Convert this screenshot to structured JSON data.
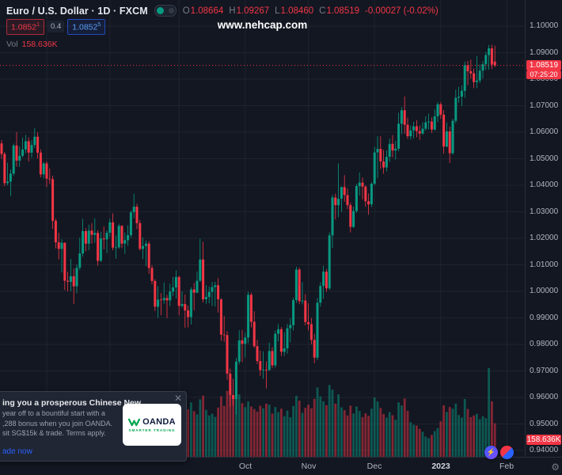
{
  "colors": {
    "background": "#131722",
    "up": "#089981",
    "down": "#f23645",
    "blue": "#2962ff",
    "grid": "#1e222d",
    "axis_text": "#b2b5be"
  },
  "header": {
    "title": "Euro / U.S. Dollar · 1D · FXCM",
    "ohlc": [
      {
        "k": "O",
        "v": "1.08664"
      },
      {
        "k": "H",
        "v": "1.09267"
      },
      {
        "k": "L",
        "v": "1.08460"
      },
      {
        "k": "C",
        "v": "1.08519"
      }
    ],
    "change": "-0.00027 (-0.02%)",
    "sell": {
      "main": "1.0852",
      "sup": "1"
    },
    "spread": "0.4",
    "buy": {
      "main": "1.0852",
      "sup": "5"
    },
    "vol_label": "Vol",
    "vol_value": "158.636K"
  },
  "watermark": "www.nehcap.com",
  "price_axis": {
    "labels": [
      "1.10000",
      "1.09000",
      "1.08000",
      "1.07000",
      "1.06000",
      "1.05000",
      "1.04000",
      "1.03000",
      "1.02000",
      "1.01000",
      "1.00000",
      "0.99000",
      "0.98000",
      "0.97000",
      "0.96000",
      "0.95000",
      "0.94000"
    ]
  },
  "time_axis": {
    "labels": [
      {
        "text": "Oct",
        "index": 81
      },
      {
        "text": "Nov",
        "index": 102
      },
      {
        "text": "Dec",
        "index": 124
      },
      {
        "text": "2023",
        "index": 146,
        "em": true
      },
      {
        "text": "Feb",
        "index": 168
      }
    ]
  },
  "badges": {
    "last_price": "1.08519",
    "countdown": "07:25:20",
    "volume": "158.636K"
  },
  "ad": {
    "title": "ing you a prosperous Chinese New",
    "lines": [
      "year off to a bountiful start with a",
      ",288 bonus when you join OANDA.",
      "sit SG$15k & trade. Terms apply."
    ],
    "cta": "ade now",
    "logo_name": "OANDA",
    "logo_sub": "SMARTER TRADING"
  },
  "chart_data": {
    "type": "candlestick",
    "title": "Euro / U.S. Dollar",
    "timeframe": "1D",
    "exchange": "FXCM",
    "legend_last_candle": {
      "o": 1.08664,
      "h": 1.09267,
      "l": 1.0846,
      "c": 1.08519,
      "change": -0.00027,
      "change_pct": -0.02,
      "volume_k": 158.636
    },
    "last_price": 1.08519,
    "y_axis": {
      "min": 0.94,
      "max": 1.1,
      "tick": 0.01
    },
    "volume_unit": "K",
    "volume_max_k": 420,
    "x_month_gridlines": [
      15,
      36,
      59,
      81,
      102,
      124,
      146,
      168
    ],
    "candles_ohlcv": [
      [
        1.0558,
        1.057,
        1.05,
        1.0518,
        185
      ],
      [
        1.0518,
        1.0525,
        1.0397,
        1.0408,
        232
      ],
      [
        1.0408,
        1.0485,
        1.04,
        1.0414,
        198
      ],
      [
        1.0414,
        1.0459,
        1.0359,
        1.0444,
        210
      ],
      [
        1.0444,
        1.0557,
        1.0435,
        1.055,
        205
      ],
      [
        1.055,
        1.0601,
        1.047,
        1.0493,
        190
      ],
      [
        1.0493,
        1.0546,
        1.0469,
        1.0511,
        165
      ],
      [
        1.0511,
        1.058,
        1.0505,
        1.0535,
        172
      ],
      [
        1.0535,
        1.059,
        1.052,
        1.0566,
        160
      ],
      [
        1.0566,
        1.058,
        1.049,
        1.0523,
        178
      ],
      [
        1.0523,
        1.057,
        1.0504,
        1.0552,
        150
      ],
      [
        1.0552,
        1.0615,
        1.054,
        1.0583,
        162
      ],
      [
        1.0583,
        1.06,
        1.0501,
        1.0523,
        170
      ],
      [
        1.0523,
        1.0535,
        1.043,
        1.0441,
        188
      ],
      [
        1.0441,
        1.0488,
        1.0425,
        1.0482,
        155
      ],
      [
        1.0482,
        1.049,
        1.0393,
        1.0425,
        196
      ],
      [
        1.0425,
        1.0463,
        1.0405,
        1.0423,
        148
      ],
      [
        1.0423,
        1.0436,
        1.0235,
        1.0266,
        265
      ],
      [
        1.0266,
        1.0274,
        1.0162,
        1.0185,
        248
      ],
      [
        1.0185,
        1.0221,
        1.012,
        1.016,
        230
      ],
      [
        1.016,
        1.0196,
        1.0071,
        1.0183,
        242
      ],
      [
        1.0183,
        1.0185,
        1.0005,
        1.004,
        288
      ],
      [
        1.004,
        1.0074,
        0.9999,
        1.0036,
        262
      ],
      [
        1.0036,
        1.0122,
        1.0,
        1.0057,
        255
      ],
      [
        1.0057,
        1.0086,
        0.9952,
        1.0019,
        295
      ],
      [
        1.0019,
        1.0101,
        0.9993,
        1.0089,
        240
      ],
      [
        1.0089,
        1.0202,
        1.008,
        1.0143,
        225
      ],
      [
        1.0143,
        1.0273,
        1.0131,
        1.0227,
        238
      ],
      [
        1.0227,
        1.0238,
        1.0151,
        1.018,
        205
      ],
      [
        1.018,
        1.0251,
        1.0155,
        1.0229,
        198
      ],
      [
        1.0229,
        1.0257,
        1.018,
        1.0213,
        176
      ],
      [
        1.0213,
        1.0275,
        1.0183,
        1.022,
        168
      ],
      [
        1.022,
        1.023,
        1.0097,
        1.0115,
        215
      ],
      [
        1.0115,
        1.0225,
        1.011,
        1.0199,
        222
      ],
      [
        1.0199,
        1.0245,
        1.0158,
        1.0196,
        189
      ],
      [
        1.0196,
        1.023,
        1.0144,
        1.0221,
        177
      ],
      [
        1.0221,
        1.0274,
        1.0205,
        1.026,
        193
      ],
      [
        1.026,
        1.0294,
        1.0155,
        1.0165,
        226
      ],
      [
        1.0165,
        1.0211,
        1.0123,
        1.0166,
        184
      ],
      [
        1.0166,
        1.0255,
        1.016,
        1.0247,
        178
      ],
      [
        1.0247,
        1.025,
        1.0163,
        1.018,
        190
      ],
      [
        1.018,
        1.0222,
        1.0141,
        1.0193,
        162
      ],
      [
        1.0193,
        1.0249,
        1.0172,
        1.0212,
        158
      ],
      [
        1.0212,
        1.0305,
        1.0202,
        1.0298,
        201
      ],
      [
        1.0298,
        1.0368,
        1.0276,
        1.0319,
        232
      ],
      [
        1.0319,
        1.033,
        1.0235,
        1.0257,
        205
      ],
      [
        1.0257,
        1.0269,
        1.0154,
        1.016,
        218
      ],
      [
        1.016,
        1.0203,
        1.0122,
        1.0171,
        174
      ],
      [
        1.0171,
        1.0192,
        1.0096,
        1.018,
        166
      ],
      [
        1.018,
        1.019,
        1.0066,
        1.0088,
        209
      ],
      [
        1.0088,
        1.0098,
        1.0026,
        1.0039,
        214
      ],
      [
        1.0039,
        1.0046,
        0.9926,
        0.9942,
        258
      ],
      [
        0.9942,
        1.0019,
        0.99,
        0.9969,
        246
      ],
      [
        0.9969,
        0.9993,
        0.991,
        0.9967,
        190
      ],
      [
        0.9967,
        1.0033,
        0.9953,
        0.9975,
        182
      ],
      [
        0.9975,
        0.9987,
        0.9899,
        0.9966,
        205
      ],
      [
        0.9966,
        1.0029,
        0.9944,
        0.9999,
        193
      ],
      [
        0.9999,
        1.0055,
        0.9982,
        1.0015,
        176
      ],
      [
        1.0015,
        1.0079,
        0.9972,
        1.0054,
        214
      ],
      [
        1.0054,
        1.0059,
        0.991,
        0.9945,
        268
      ],
      [
        0.9945,
        1.0,
        0.9939,
        0.9952,
        212
      ],
      [
        0.9952,
        0.9988,
        0.9863,
        0.9928,
        247
      ],
      [
        0.9928,
        0.9946,
        0.9864,
        0.9903,
        225
      ],
      [
        0.9903,
        1.0015,
        0.9875,
        1.0007,
        258
      ],
      [
        1.0007,
        1.0032,
        0.9928,
        0.9995,
        216
      ],
      [
        0.9995,
        1.0075,
        0.9993,
        1.004,
        201
      ],
      [
        1.004,
        1.0198,
        1.0035,
        1.012,
        272
      ],
      [
        1.012,
        1.0187,
        0.9958,
        0.997,
        290
      ],
      [
        0.997,
        1.0023,
        0.9953,
        0.9979,
        222
      ],
      [
        0.9979,
        1.0018,
        0.9955,
        0.9998,
        196
      ],
      [
        0.9998,
        1.0036,
        0.9945,
        1.0016,
        204
      ],
      [
        1.0016,
        1.0036,
        0.9943,
        1.0023,
        189
      ],
      [
        1.0023,
        1.005,
        0.992,
        0.997,
        233
      ],
      [
        0.997,
        0.9974,
        0.9813,
        0.9837,
        287
      ],
      [
        0.9837,
        0.9907,
        0.981,
        0.9835,
        241
      ],
      [
        0.9835,
        0.985,
        0.9667,
        0.969,
        312
      ],
      [
        0.969,
        0.9709,
        0.9565,
        0.9609,
        336
      ],
      [
        0.9609,
        0.967,
        0.957,
        0.9594,
        288
      ],
      [
        0.9594,
        0.975,
        0.9535,
        0.9735,
        342
      ],
      [
        0.9735,
        0.9853,
        0.9724,
        0.9815,
        296
      ],
      [
        0.9815,
        0.9854,
        0.9733,
        0.9802,
        254
      ],
      [
        0.9802,
        0.9844,
        0.9751,
        0.9826,
        235
      ],
      [
        0.9826,
        0.9999,
        0.9804,
        0.9987,
        262
      ],
      [
        0.9987,
        0.9995,
        0.9864,
        0.9885,
        238
      ],
      [
        0.9885,
        0.9925,
        0.9787,
        0.9793,
        226
      ],
      [
        0.9793,
        0.9817,
        0.9726,
        0.9737,
        214
      ],
      [
        0.9737,
        0.9776,
        0.9681,
        0.9703,
        242
      ],
      [
        0.9703,
        0.9774,
        0.967,
        0.9704,
        230
      ],
      [
        0.9704,
        0.9736,
        0.9634,
        0.9703,
        252
      ],
      [
        0.9703,
        0.9807,
        0.9701,
        0.9775,
        247
      ],
      [
        0.9775,
        0.979,
        0.971,
        0.9721,
        205
      ],
      [
        0.9721,
        0.9852,
        0.9712,
        0.984,
        236
      ],
      [
        0.984,
        0.9876,
        0.9811,
        0.9857,
        212
      ],
      [
        0.9857,
        0.9865,
        0.9756,
        0.9772,
        228
      ],
      [
        0.9772,
        0.9846,
        0.9757,
        0.9785,
        192
      ],
      [
        0.9785,
        0.9877,
        0.9765,
        0.9861,
        219
      ],
      [
        0.9861,
        0.9899,
        0.9808,
        0.9873,
        187
      ],
      [
        0.9873,
        0.9976,
        0.9852,
        0.9967,
        241
      ],
      [
        0.9967,
        1.0093,
        0.9956,
        1.0082,
        289
      ],
      [
        1.0082,
        1.0089,
        0.9952,
        0.9963,
        266
      ],
      [
        0.9963,
        1.0034,
        0.9951,
        0.9965,
        208
      ],
      [
        0.9965,
        0.999,
        0.9872,
        0.9884,
        232
      ],
      [
        0.9884,
        0.9955,
        0.9853,
        0.9876,
        247
      ],
      [
        0.9876,
        0.9899,
        0.98,
        0.9817,
        229
      ],
      [
        0.9817,
        0.984,
        0.9729,
        0.975,
        274
      ],
      [
        0.975,
        0.9975,
        0.9741,
        0.9957,
        328
      ],
      [
        0.9957,
        1.0034,
        0.9942,
        1.002,
        286
      ],
      [
        1.002,
        1.0096,
        0.9972,
        1.0074,
        263
      ],
      [
        1.0074,
        1.0084,
        0.9998,
        1.0011,
        244
      ],
      [
        1.0011,
        1.0222,
        1.0006,
        1.0211,
        340
      ],
      [
        1.0211,
        1.0364,
        1.0163,
        1.0354,
        318
      ],
      [
        1.0354,
        1.0369,
        1.0271,
        1.0325,
        252
      ],
      [
        1.0325,
        1.0482,
        1.028,
        1.0349,
        296
      ],
      [
        1.0349,
        1.0395,
        1.0299,
        1.0393,
        234
      ],
      [
        1.0393,
        1.0438,
        1.0338,
        1.0363,
        221
      ],
      [
        1.0363,
        1.0388,
        1.031,
        1.0325,
        196
      ],
      [
        1.0325,
        1.0334,
        1.0222,
        1.0243,
        242
      ],
      [
        1.0243,
        1.0319,
        1.0239,
        1.0303,
        205
      ],
      [
        1.0303,
        1.0405,
        1.0296,
        1.0397,
        238
      ],
      [
        1.0397,
        1.0448,
        1.0361,
        1.041,
        217
      ],
      [
        1.041,
        1.0429,
        1.0347,
        1.0395,
        188
      ],
      [
        1.0395,
        1.0399,
        1.0319,
        1.034,
        206
      ],
      [
        1.034,
        1.0369,
        1.0289,
        1.0328,
        194
      ],
      [
        1.0328,
        1.0411,
        1.0318,
        1.0406,
        228
      ],
      [
        1.0406,
        1.0545,
        1.04,
        1.0524,
        281
      ],
      [
        1.0524,
        1.0585,
        1.0427,
        1.0537,
        262
      ],
      [
        1.0537,
        1.0585,
        1.0461,
        1.049,
        231
      ],
      [
        1.049,
        1.0533,
        1.0443,
        1.0467,
        203
      ],
      [
        1.0467,
        1.0531,
        1.0452,
        1.0507,
        186
      ],
      [
        1.0507,
        1.0576,
        1.0488,
        1.0556,
        212
      ],
      [
        1.0556,
        1.0589,
        1.0505,
        1.0531,
        197
      ],
      [
        1.0531,
        1.0568,
        1.0497,
        1.0538,
        176
      ],
      [
        1.0538,
        1.0673,
        1.0528,
        1.0632,
        258
      ],
      [
        1.0632,
        1.0695,
        1.0593,
        1.0683,
        243
      ],
      [
        1.0683,
        1.0735,
        1.0594,
        1.0628,
        276
      ],
      [
        1.0628,
        1.0655,
        1.0575,
        1.0585,
        218
      ],
      [
        1.0585,
        1.0625,
        1.0572,
        1.0607,
        164
      ],
      [
        1.0607,
        1.0639,
        1.0576,
        1.0622,
        152
      ],
      [
        1.0622,
        1.0645,
        1.0581,
        1.0604,
        148
      ],
      [
        1.0604,
        1.0625,
        1.0571,
        1.0595,
        132
      ],
      [
        1.0595,
        1.0638,
        1.059,
        1.0613,
        118
      ],
      [
        1.0613,
        1.066,
        1.0606,
        1.0637,
        96
      ],
      [
        1.0637,
        1.067,
        1.0611,
        1.064,
        88
      ],
      [
        1.064,
        1.0656,
        1.0597,
        1.061,
        104
      ],
      [
        1.061,
        1.0686,
        1.0605,
        1.066,
        122
      ],
      [
        1.066,
        1.0714,
        1.0638,
        1.0705,
        136
      ],
      [
        1.0705,
        1.0713,
        1.065,
        1.0666,
        168
      ],
      [
        1.0666,
        1.0683,
        1.0519,
        1.0546,
        244
      ],
      [
        1.0546,
        1.0637,
        1.0543,
        1.0603,
        212
      ],
      [
        1.0603,
        1.0621,
        1.0484,
        1.0521,
        236
      ],
      [
        1.0521,
        1.0651,
        1.0515,
        1.0643,
        228
      ],
      [
        1.0643,
        1.0761,
        1.0634,
        1.073,
        252
      ],
      [
        1.073,
        1.0771,
        1.0711,
        1.0734,
        198
      ],
      [
        1.0734,
        1.0776,
        1.0698,
        1.0756,
        186
      ],
      [
        1.0756,
        1.0867,
        1.073,
        1.0852,
        274
      ],
      [
        1.0852,
        1.0869,
        1.0778,
        1.083,
        226
      ],
      [
        1.083,
        1.0874,
        1.0802,
        1.0822,
        188
      ],
      [
        1.0822,
        1.084,
        1.0766,
        1.0789,
        196
      ],
      [
        1.0789,
        1.0887,
        1.0767,
        1.0795,
        204
      ],
      [
        1.0795,
        1.0856,
        1.0785,
        1.0832,
        178
      ],
      [
        1.0832,
        1.0868,
        1.0803,
        1.0856,
        192
      ],
      [
        1.0856,
        1.0903,
        1.0835,
        1.0891,
        183
      ],
      [
        1.0891,
        1.0929,
        1.0836,
        1.0916,
        420
      ],
      [
        1.0916,
        1.093,
        1.0838,
        1.0855,
        263
      ],
      [
        1.08664,
        1.09267,
        1.0846,
        1.08519,
        158.636
      ]
    ]
  }
}
